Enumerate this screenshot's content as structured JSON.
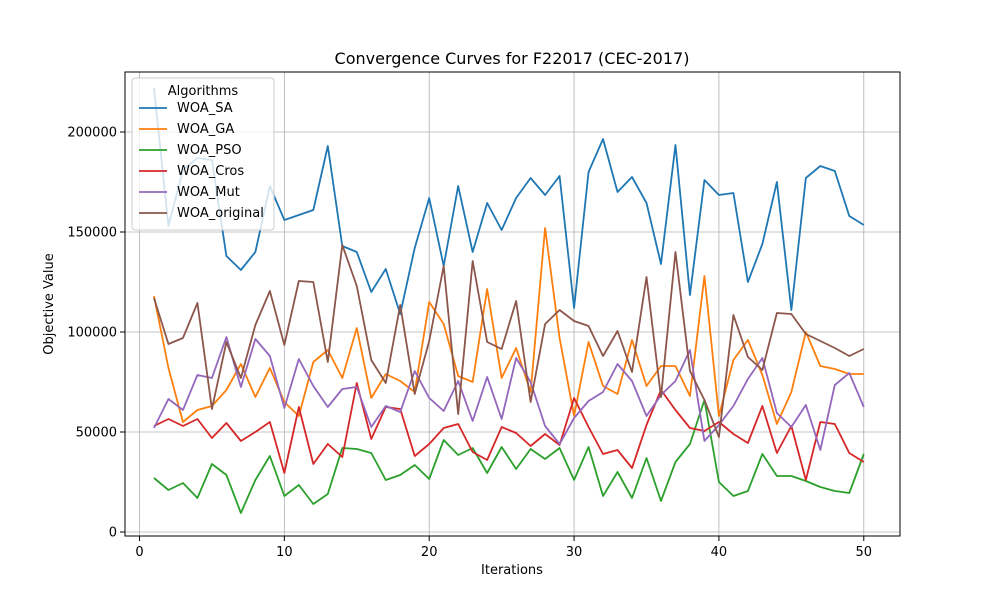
{
  "chart_data": {
    "type": "line",
    "title": "Convergence Curves for F22017 (CEC-2017)",
    "xlabel": "Iterations",
    "ylabel": "Objective Value",
    "xlim": [
      -1,
      52.5
    ],
    "ylim": [
      -2000,
      230000
    ],
    "xticks": [
      0,
      10,
      20,
      30,
      40,
      50
    ],
    "yticks": [
      0,
      50000,
      100000,
      150000,
      200000
    ],
    "grid": true,
    "legend": {
      "title": "Algorithms",
      "placement": "top-left"
    },
    "x": [
      1,
      2,
      3,
      4,
      5,
      6,
      7,
      8,
      9,
      10,
      11,
      12,
      13,
      14,
      15,
      16,
      17,
      18,
      19,
      20,
      21,
      22,
      23,
      24,
      25,
      26,
      27,
      28,
      29,
      30,
      31,
      32,
      33,
      34,
      35,
      36,
      37,
      38,
      39,
      40,
      41,
      42,
      43,
      44,
      45,
      46,
      47,
      48,
      49,
      50
    ],
    "series": [
      {
        "name": "WOA_SA",
        "color": "#1f77b4",
        "values": [
          222000,
          153000,
          181000,
          187000,
          186000,
          138000,
          131000,
          140000,
          173000,
          156000,
          158500,
          161000,
          193000,
          143000,
          140000,
          120000,
          131500,
          109000,
          142000,
          167000,
          133000,
          173000,
          140000,
          164500,
          151000,
          167000,
          177000,
          168500,
          178000,
          112000,
          180000,
          196500,
          170000,
          177500,
          164500,
          134000,
          193500,
          118500,
          176000,
          168500,
          169500,
          125000,
          144000,
          175000,
          111000,
          177000,
          183000,
          180500,
          158000,
          153500
        ]
      },
      {
        "name": "WOA_GA",
        "color": "#ff7f0e",
        "values": [
          118000,
          82000,
          55000,
          61000,
          63000,
          71000,
          84000,
          67500,
          82000,
          65000,
          58000,
          85000,
          91000,
          77000,
          102000,
          67000,
          79000,
          75500,
          70000,
          115000,
          104000,
          78000,
          75000,
          121500,
          77000,
          92000,
          70000,
          152000,
          97000,
          58000,
          95000,
          73000,
          69000,
          96000,
          73000,
          83000,
          83000,
          68000,
          128000,
          58000,
          86000,
          96000,
          78500,
          54000,
          70000,
          100000,
          83000,
          81500,
          79000,
          79000
        ]
      },
      {
        "name": "WOA_PSO",
        "color": "#2ca02c",
        "values": [
          27000,
          21000,
          24500,
          17000,
          34000,
          28500,
          9500,
          26000,
          38000,
          18000,
          23500,
          14000,
          19000,
          42000,
          41500,
          39500,
          26000,
          28500,
          33500,
          26500,
          46000,
          38500,
          42000,
          29500,
          42500,
          31500,
          41500,
          36500,
          42000,
          26000,
          42500,
          18000,
          30000,
          17000,
          37000,
          15500,
          35000,
          44000,
          66000,
          25000,
          18000,
          20500,
          39000,
          28000,
          28000,
          25500,
          22500,
          20500,
          19500,
          39000
        ]
      },
      {
        "name": "WOA_Cros",
        "color": "#d62728",
        "values": [
          53000,
          56500,
          53000,
          56500,
          47000,
          54500,
          45500,
          50000,
          55000,
          29500,
          62500,
          34000,
          44000,
          37500,
          74500,
          46500,
          62500,
          61500,
          38000,
          44000,
          52000,
          54000,
          40000,
          36000,
          52500,
          49500,
          43000,
          49000,
          43500,
          67000,
          52500,
          39000,
          41000,
          32000,
          53500,
          71000,
          61000,
          52000,
          50500,
          55000,
          49000,
          44500,
          63000,
          39500,
          53000,
          26000,
          55000,
          54000,
          39500,
          35000
        ]
      },
      {
        "name": "WOA_Mut",
        "color": "#9467bd",
        "values": [
          52000,
          66500,
          61000,
          78500,
          77000,
          97500,
          72500,
          96500,
          88000,
          62000,
          86500,
          73000,
          62500,
          71500,
          72500,
          52500,
          63000,
          60000,
          80500,
          67000,
          60500,
          75500,
          55500,
          77500,
          56500,
          87000,
          75000,
          53000,
          44000,
          57000,
          65500,
          70000,
          84000,
          75500,
          58000,
          68500,
          75500,
          91000,
          45500,
          53500,
          63000,
          76500,
          87000,
          59500,
          52500,
          63500,
          41000,
          73500,
          79500,
          62500
        ]
      },
      {
        "name": "WOA_original",
        "color": "#8c564b",
        "values": [
          117000,
          94000,
          97000,
          114500,
          61500,
          95000,
          77000,
          103500,
          120500,
          93500,
          125500,
          125000,
          85000,
          143500,
          123000,
          86000,
          74500,
          113500,
          69000,
          95500,
          133000,
          59000,
          135500,
          95000,
          91500,
          115500,
          65000,
          104000,
          111000,
          105500,
          103000,
          88000,
          100500,
          80000,
          127500,
          67500,
          140000,
          80500,
          66000,
          47500,
          108500,
          87500,
          81000,
          109500,
          109000,
          99000,
          95500,
          92000,
          88000,
          91500
        ]
      }
    ]
  }
}
